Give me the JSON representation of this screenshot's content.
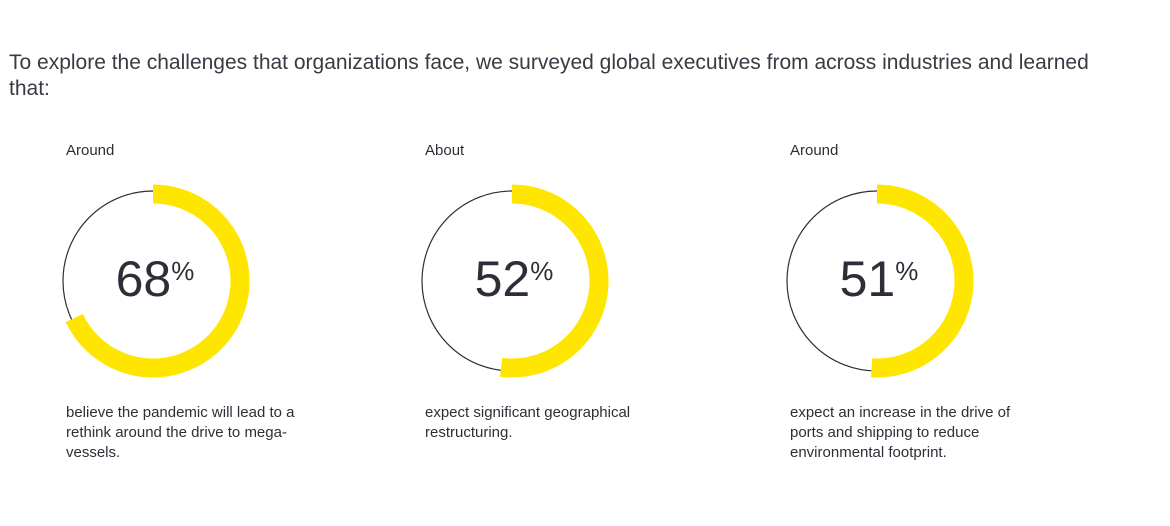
{
  "intro": "To explore the challenges that organizations face, we surveyed global executives from across industries and learned that:",
  "colors": {
    "accent": "#FFE600",
    "text": "#2e2e38",
    "ring": "#2e2e38"
  },
  "chart_data": [
    {
      "type": "pie",
      "prefix": "Around",
      "value": 68,
      "unit": "%",
      "description": "believe the pandemic will lead to a rethink around the drive to mega-vessels."
    },
    {
      "type": "pie",
      "prefix": "About",
      "value": 52,
      "unit": "%",
      "description": "expect significant geographical restructuring."
    },
    {
      "type": "pie",
      "prefix": "Around",
      "value": 51,
      "unit": "%",
      "description": "expect an increase in the drive of ports and shipping to reduce environmental footprint."
    }
  ]
}
